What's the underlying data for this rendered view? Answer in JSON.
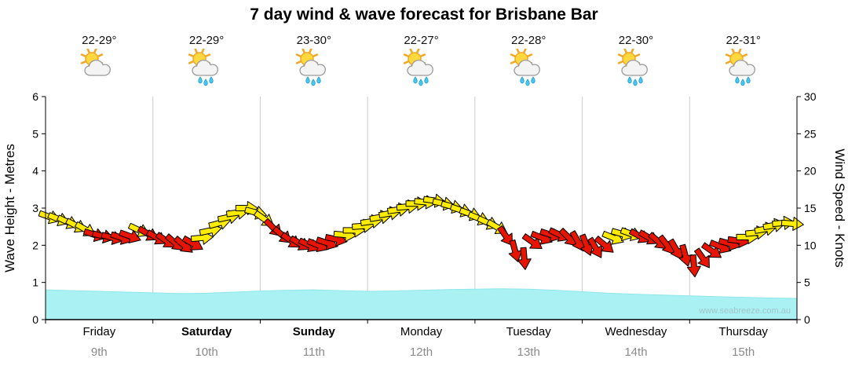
{
  "title": "7 day wind & wave forecast for Brisbane Bar",
  "watermark": "www.seabreeze.com.au",
  "days": [
    {
      "name": "Friday",
      "date": "9th",
      "temp": "22-29°",
      "bold": false,
      "icon": "sun-cloud"
    },
    {
      "name": "Saturday",
      "date": "10th",
      "temp": "22-29°",
      "bold": true,
      "icon": "sun-cloud-rain"
    },
    {
      "name": "Sunday",
      "date": "11th",
      "temp": "23-30°",
      "bold": true,
      "icon": "sun-cloud-rain"
    },
    {
      "name": "Monday",
      "date": "12th",
      "temp": "22-27°",
      "bold": false,
      "icon": "sun-cloud-rain"
    },
    {
      "name": "Tuesday",
      "date": "13th",
      "temp": "22-28°",
      "bold": false,
      "icon": "sun-cloud-rain"
    },
    {
      "name": "Wednesday",
      "date": "14th",
      "temp": "22-30°",
      "bold": false,
      "icon": "sun-cloud-rain"
    },
    {
      "name": "Thursday",
      "date": "15th",
      "temp": "22-31°",
      "bold": false,
      "icon": "sun-cloud-rain"
    }
  ],
  "axes": {
    "left_label": "Wave Height - Metres",
    "right_label": "Wind Speed - Knots",
    "left_ticks": [
      0,
      1,
      2,
      3,
      4,
      5,
      6
    ],
    "right_ticks": [
      0,
      5,
      10,
      15,
      20,
      25,
      30
    ],
    "left_range": [
      0,
      6
    ],
    "right_range": [
      0,
      30
    ]
  },
  "colors": {
    "wave": "#a9f1f3",
    "wave_edge": "#8fe6ea",
    "wind_yellow": "#ffec00",
    "wind_red": "#e61400",
    "grid": "#cccccc",
    "axis": "#000000",
    "date_text": "#8a8a8a",
    "watermark": "#a3c6c9"
  },
  "chart_data": {
    "type": "mixed",
    "x_range_days": 7,
    "x_categories": [
      "Friday 9th",
      "Saturday 10th",
      "Sunday 11th",
      "Monday 12th",
      "Tuesday 13th",
      "Wednesday 14th",
      "Thursday 15th"
    ],
    "series": [
      {
        "name": "Wave Height",
        "type": "area",
        "unit": "metres",
        "axis_range": [
          0,
          6
        ],
        "points": [
          [
            0,
            0.8
          ],
          [
            0.25,
            0.78
          ],
          [
            0.5,
            0.76
          ],
          [
            0.75,
            0.74
          ],
          [
            1,
            0.72
          ],
          [
            1.25,
            0.7
          ],
          [
            1.5,
            0.71
          ],
          [
            1.75,
            0.74
          ],
          [
            2,
            0.77
          ],
          [
            2.25,
            0.79
          ],
          [
            2.5,
            0.8
          ],
          [
            2.75,
            0.78
          ],
          [
            3,
            0.76
          ],
          [
            3.25,
            0.77
          ],
          [
            3.5,
            0.79
          ],
          [
            3.75,
            0.81
          ],
          [
            4,
            0.82
          ],
          [
            4.25,
            0.83
          ],
          [
            4.5,
            0.82
          ],
          [
            4.75,
            0.79
          ],
          [
            5,
            0.75
          ],
          [
            5.25,
            0.71
          ],
          [
            5.5,
            0.68
          ],
          [
            5.75,
            0.66
          ],
          [
            6,
            0.64
          ],
          [
            6.25,
            0.62
          ],
          [
            6.5,
            0.6
          ],
          [
            6.75,
            0.58
          ],
          [
            7,
            0.57
          ]
        ]
      },
      {
        "name": "Wind Speed & Direction",
        "type": "wind-arrows",
        "unit": "knots",
        "axis_range": [
          0,
          30
        ],
        "arrows": [
          [
            0.04,
            13.8,
            20,
            "y"
          ],
          [
            0.125,
            13.5,
            22,
            "y"
          ],
          [
            0.21,
            13.1,
            25,
            "y"
          ],
          [
            0.29,
            12.6,
            28,
            "y"
          ],
          [
            0.375,
            12.1,
            30,
            "y"
          ],
          [
            0.46,
            11.4,
            18,
            "r"
          ],
          [
            0.54,
            11.2,
            15,
            "r"
          ],
          [
            0.625,
            11.0,
            15,
            "r"
          ],
          [
            0.71,
            11.0,
            18,
            "r"
          ],
          [
            0.79,
            11.2,
            20,
            "r"
          ],
          [
            0.875,
            12.0,
            25,
            "y"
          ],
          [
            0.96,
            11.5,
            30,
            "r"
          ],
          [
            1.04,
            11.0,
            30,
            "r"
          ],
          [
            1.125,
            10.6,
            35,
            "r"
          ],
          [
            1.21,
            10.3,
            40,
            "r"
          ],
          [
            1.29,
            10.0,
            40,
            "r"
          ],
          [
            1.375,
            10.2,
            30,
            "r"
          ],
          [
            1.46,
            11.0,
            -5,
            "y"
          ],
          [
            1.54,
            12.0,
            -12,
            "y"
          ],
          [
            1.625,
            13.0,
            -15,
            "y"
          ],
          [
            1.71,
            13.8,
            -12,
            "y"
          ],
          [
            1.79,
            14.4,
            -8,
            "y"
          ],
          [
            1.875,
            15.0,
            0,
            "y"
          ],
          [
            1.96,
            14.4,
            15,
            "y"
          ],
          [
            2.04,
            13.5,
            35,
            "y"
          ],
          [
            2.125,
            12.3,
            45,
            "r"
          ],
          [
            2.21,
            11.3,
            40,
            "r"
          ],
          [
            2.29,
            10.6,
            35,
            "r"
          ],
          [
            2.375,
            10.2,
            30,
            "r"
          ],
          [
            2.46,
            10.0,
            25,
            "r"
          ],
          [
            2.54,
            10.0,
            22,
            "r"
          ],
          [
            2.625,
            10.3,
            18,
            "r"
          ],
          [
            2.71,
            10.8,
            12,
            "r"
          ],
          [
            2.79,
            11.4,
            5,
            "y"
          ],
          [
            2.875,
            12.0,
            0,
            "y"
          ],
          [
            2.96,
            12.6,
            -5,
            "y"
          ],
          [
            3.04,
            13.2,
            -8,
            "y"
          ],
          [
            3.125,
            13.8,
            -10,
            "y"
          ],
          [
            3.21,
            14.3,
            -10,
            "y"
          ],
          [
            3.29,
            14.8,
            -8,
            "y"
          ],
          [
            3.375,
            15.2,
            -5,
            "y"
          ],
          [
            3.46,
            15.6,
            0,
            "y"
          ],
          [
            3.54,
            15.8,
            5,
            "y"
          ],
          [
            3.625,
            16.0,
            8,
            "y"
          ],
          [
            3.71,
            15.6,
            12,
            "y"
          ],
          [
            3.79,
            15.2,
            15,
            "y"
          ],
          [
            3.875,
            14.7,
            18,
            "y"
          ],
          [
            3.96,
            14.2,
            20,
            "y"
          ],
          [
            4.04,
            13.6,
            22,
            "y"
          ],
          [
            4.125,
            13.0,
            25,
            "y"
          ],
          [
            4.21,
            12.4,
            30,
            "y"
          ],
          [
            4.29,
            11.2,
            55,
            "r"
          ],
          [
            4.375,
            9.2,
            75,
            "r"
          ],
          [
            4.46,
            8.2,
            85,
            "r"
          ],
          [
            4.54,
            10.4,
            35,
            "r"
          ],
          [
            4.625,
            11.0,
            22,
            "r"
          ],
          [
            4.71,
            11.4,
            18,
            "r"
          ],
          [
            4.79,
            11.4,
            25,
            "r"
          ],
          [
            4.875,
            11.0,
            45,
            "r"
          ],
          [
            4.96,
            10.5,
            60,
            "r"
          ],
          [
            5.04,
            10.0,
            68,
            "r"
          ],
          [
            5.125,
            9.6,
            60,
            "r"
          ],
          [
            5.21,
            10.0,
            40,
            "r"
          ],
          [
            5.29,
            11.0,
            22,
            "y"
          ],
          [
            5.375,
            11.5,
            16,
            "y"
          ],
          [
            5.46,
            11.5,
            20,
            "y"
          ],
          [
            5.54,
            11.2,
            28,
            "r"
          ],
          [
            5.625,
            11.0,
            30,
            "r"
          ],
          [
            5.71,
            10.5,
            40,
            "r"
          ],
          [
            5.79,
            10.0,
            52,
            "r"
          ],
          [
            5.875,
            9.4,
            60,
            "r"
          ],
          [
            5.96,
            8.6,
            75,
            "r"
          ],
          [
            6.04,
            7.2,
            85,
            "r"
          ],
          [
            6.125,
            8.2,
            55,
            "r"
          ],
          [
            6.21,
            9.2,
            35,
            "r"
          ],
          [
            6.29,
            9.8,
            22,
            "r"
          ],
          [
            6.375,
            10.2,
            15,
            "r"
          ],
          [
            6.46,
            10.6,
            8,
            "r"
          ],
          [
            6.54,
            11.1,
            0,
            "y"
          ],
          [
            6.625,
            11.7,
            -6,
            "y"
          ],
          [
            6.71,
            12.2,
            -10,
            "y"
          ],
          [
            6.79,
            12.7,
            -10,
            "y"
          ],
          [
            6.875,
            13.0,
            -5,
            "y"
          ],
          [
            6.96,
            12.9,
            5,
            "y"
          ]
        ]
      }
    ]
  }
}
